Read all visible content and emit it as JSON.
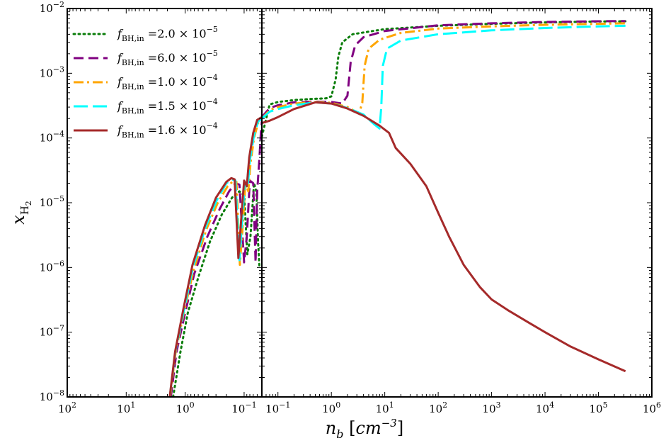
{
  "chart_data": {
    "type": "line",
    "xlabel": "n_b [cm^-3]",
    "ylabel": "x_H2",
    "y_scale": "log",
    "ylim": [
      1e-08,
      0.01
    ],
    "y_ticks": [
      {
        "value": 1e-08,
        "label": "10^-8"
      },
      {
        "value": 1e-07,
        "label": "10^-7"
      },
      {
        "value": 1e-06,
        "label": "10^-6"
      },
      {
        "value": 1e-05,
        "label": "10^-5"
      },
      {
        "value": 0.0001,
        "label": "10^-4"
      },
      {
        "value": 0.001,
        "label": "10^-3"
      },
      {
        "value": 0.01,
        "label": "10^-2"
      }
    ],
    "left_panel": {
      "note": "contracting phase, x axis reversed (density decreasing to the right)",
      "x_scale": "log",
      "xlim": [
        100,
        0.05
      ],
      "x_ticks": [
        {
          "value": 100,
          "label": "10^2"
        },
        {
          "value": 10,
          "label": "10^1"
        },
        {
          "value": 1,
          "label": "10^0"
        },
        {
          "value": 0.1,
          "label": "10^-1"
        }
      ]
    },
    "right_panel": {
      "x_scale": "log",
      "xlim": [
        0.05,
        1000000
      ],
      "x_ticks": [
        {
          "value": 0.1,
          "label": "10^-1"
        },
        {
          "value": 1,
          "label": "10^0"
        },
        {
          "value": 10,
          "label": "10^1"
        },
        {
          "value": 100,
          "label": "10^2"
        },
        {
          "value": 1000,
          "label": "10^3"
        },
        {
          "value": 10000,
          "label": "10^4"
        },
        {
          "value": 100000,
          "label": "10^5"
        },
        {
          "value": 1000000,
          "label": "10^6"
        }
      ]
    },
    "legend_position": "upper-left",
    "series": [
      {
        "name": "f_BH,in = 2.0 × 10^-5",
        "legend_mantissa": "2.0",
        "legend_exponent": "-5",
        "color": "#0a7d0a",
        "dash": "2 5",
        "linecap": "round",
        "left": [
          [
            1.6,
            1e-08
          ],
          [
            1.2,
            5e-08
          ],
          [
            0.9,
            2e-07
          ],
          [
            0.6,
            7e-07
          ],
          [
            0.38,
            2.5e-06
          ],
          [
            0.24,
            6.5e-06
          ],
          [
            0.16,
            1.2e-05
          ],
          [
            0.12,
            1.5e-05
          ],
          [
            0.1,
            1.3e-05
          ],
          [
            0.088,
            1.6e-06
          ],
          [
            0.078,
            3e-06
          ],
          [
            0.068,
            2e-05
          ],
          [
            0.062,
            1.5e-05
          ],
          [
            0.058,
            2.5e-06
          ],
          [
            0.055,
            1e-06
          ]
        ],
        "right": [
          [
            0.05,
            0.000105
          ],
          [
            0.07,
            0.00033
          ],
          [
            0.1,
            0.00036
          ],
          [
            0.2,
            0.000385
          ],
          [
            0.4,
            0.0004
          ],
          [
            0.8,
            0.00041
          ],
          [
            1.0,
            0.00044
          ],
          [
            1.2,
            0.0008
          ],
          [
            1.35,
            0.0018
          ],
          [
            1.6,
            0.003
          ],
          [
            2.5,
            0.004
          ],
          [
            10,
            0.0048
          ],
          [
            100,
            0.0054
          ],
          [
            1000,
            0.0058
          ],
          [
            10000,
            0.0061
          ],
          [
            100000,
            0.0063
          ],
          [
            320000,
            0.00635
          ]
        ]
      },
      {
        "name": "f_BH,in = 6.0 × 10^-5",
        "legend_mantissa": "6.0",
        "legend_exponent": "-5",
        "color": "#800080",
        "dash": "14 7",
        "linecap": "butt",
        "left": [
          [
            1.75,
            1e-08
          ],
          [
            1.4,
            5e-08
          ],
          [
            1.0,
            2e-07
          ],
          [
            0.7,
            8e-07
          ],
          [
            0.42,
            3e-06
          ],
          [
            0.26,
            8e-06
          ],
          [
            0.18,
            1.5e-05
          ],
          [
            0.14,
            2e-05
          ],
          [
            0.12,
            1.9e-05
          ],
          [
            0.1,
            1.2e-06
          ],
          [
            0.09,
            3e-06
          ],
          [
            0.08,
            2.2e-05
          ],
          [
            0.07,
            2e-05
          ],
          [
            0.064,
            1.2e-06
          ],
          [
            0.06,
            1.5e-05
          ],
          [
            0.055,
            5e-05
          ],
          [
            0.052,
            0.00012
          ],
          [
            0.05,
            0.00018
          ]
        ],
        "right": [
          [
            0.05,
            0.00021
          ],
          [
            0.07,
            0.00029
          ],
          [
            0.1,
            0.00032
          ],
          [
            0.2,
            0.000355
          ],
          [
            0.5,
            0.000365
          ],
          [
            1.0,
            0.00036
          ],
          [
            1.6,
            0.00034
          ],
          [
            2.0,
            0.00045
          ],
          [
            2.3,
            0.0015
          ],
          [
            2.8,
            0.0027
          ],
          [
            4,
            0.0036
          ],
          [
            10,
            0.0045
          ],
          [
            100,
            0.0055
          ],
          [
            1000,
            0.0059
          ],
          [
            10000,
            0.0062
          ],
          [
            100000,
            0.00635
          ],
          [
            320000,
            0.0064
          ]
        ]
      },
      {
        "name": "f_BH,in = 1.0 × 10^-4",
        "legend_mantissa": "1.0",
        "legend_exponent": "-4",
        "color": "#ffa500",
        "dash": "14 5 3 5",
        "linecap": "butt",
        "left": [
          [
            1.8,
            1e-08
          ],
          [
            1.45,
            5e-08
          ],
          [
            1.05,
            2e-07
          ],
          [
            0.72,
            9e-07
          ],
          [
            0.44,
            3.8e-06
          ],
          [
            0.28,
            1e-05
          ],
          [
            0.19,
            1.8e-05
          ],
          [
            0.15,
            2.2e-05
          ],
          [
            0.135,
            2.1e-05
          ],
          [
            0.118,
            1.1e-06
          ],
          [
            0.105,
            5e-06
          ],
          [
            0.095,
            2e-05
          ],
          [
            0.085,
            1.5e-05
          ],
          [
            0.078,
            4e-05
          ],
          [
            0.068,
            0.0001
          ],
          [
            0.058,
            0.00017
          ],
          [
            0.05,
            0.0002
          ]
        ],
        "right": [
          [
            0.05,
            0.0002
          ],
          [
            0.07,
            0.00027
          ],
          [
            0.1,
            0.0003
          ],
          [
            0.2,
            0.00034
          ],
          [
            0.5,
            0.00036
          ],
          [
            1.0,
            0.00035
          ],
          [
            2.0,
            0.0003
          ],
          [
            3.3,
            0.00024
          ],
          [
            3.8,
            0.00035
          ],
          [
            4.2,
            0.0013
          ],
          [
            5,
            0.0024
          ],
          [
            8,
            0.0033
          ],
          [
            20,
            0.0042
          ],
          [
            100,
            0.0049
          ],
          [
            1000,
            0.0053
          ],
          [
            10000,
            0.0056
          ],
          [
            100000,
            0.0058
          ],
          [
            320000,
            0.0059
          ]
        ]
      },
      {
        "name": "f_BH,in = 1.5 × 10^-4",
        "legend_mantissa": "1.5",
        "legend_exponent": "-4",
        "color": "#00ffff",
        "dash": "20 7",
        "linecap": "butt",
        "left": [
          [
            1.82,
            1e-08
          ],
          [
            1.47,
            5e-08
          ],
          [
            1.07,
            2e-07
          ],
          [
            0.74,
            1e-06
          ],
          [
            0.45,
            4.2e-06
          ],
          [
            0.29,
            1.1e-05
          ],
          [
            0.2,
            2e-05
          ],
          [
            0.16,
            2.3e-05
          ],
          [
            0.14,
            2.2e-05
          ],
          [
            0.12,
            1.3e-06
          ],
          [
            0.107,
            6e-06
          ],
          [
            0.097,
            2.1e-05
          ],
          [
            0.087,
            1.7e-05
          ],
          [
            0.08,
            4.5e-05
          ],
          [
            0.068,
            0.00011
          ],
          [
            0.058,
            0.00018
          ],
          [
            0.05,
            0.0002
          ]
        ],
        "right": [
          [
            0.05,
            0.0002
          ],
          [
            0.07,
            0.000255
          ],
          [
            0.1,
            0.00028
          ],
          [
            0.2,
            0.00032
          ],
          [
            0.5,
            0.000355
          ],
          [
            1.0,
            0.00034
          ],
          [
            2.0,
            0.00029
          ],
          [
            4.0,
            0.00023
          ],
          [
            6.5,
            0.00016
          ],
          [
            8.0,
            0.00014
          ],
          [
            8.6,
            0.0003
          ],
          [
            9.2,
            0.0013
          ],
          [
            11,
            0.0024
          ],
          [
            20,
            0.0032
          ],
          [
            100,
            0.004
          ],
          [
            1000,
            0.0046
          ],
          [
            10000,
            0.005
          ],
          [
            100000,
            0.0053
          ],
          [
            320000,
            0.0054
          ]
        ]
      },
      {
        "name": "f_BH,in = 1.6 × 10^-4",
        "legend_mantissa": "1.6",
        "legend_exponent": "-4",
        "color": "#a52a2a",
        "dash": "",
        "linecap": "butt",
        "left": [
          [
            1.83,
            1e-08
          ],
          [
            1.48,
            5e-08
          ],
          [
            1.08,
            2.2e-07
          ],
          [
            0.75,
            1.1e-06
          ],
          [
            0.46,
            4.5e-06
          ],
          [
            0.3,
            1.2e-05
          ],
          [
            0.2,
            2.1e-05
          ],
          [
            0.165,
            2.4e-05
          ],
          [
            0.145,
            2.3e-05
          ],
          [
            0.125,
            1.4e-06
          ],
          [
            0.11,
            7e-06
          ],
          [
            0.1,
            2.2e-05
          ],
          [
            0.09,
            1.8e-05
          ],
          [
            0.082,
            5e-05
          ],
          [
            0.07,
            0.00012
          ],
          [
            0.06,
            0.00019
          ],
          [
            0.05,
            0.00021
          ]
        ],
        "right": [
          [
            0.05,
            0.00017
          ],
          [
            0.07,
            0.000185
          ],
          [
            0.1,
            0.00021
          ],
          [
            0.2,
            0.00028
          ],
          [
            0.5,
            0.000355
          ],
          [
            1.0,
            0.00034
          ],
          [
            2.0,
            0.000285
          ],
          [
            4.0,
            0.00022
          ],
          [
            8.0,
            0.000155
          ],
          [
            12,
            0.00012
          ],
          [
            16,
            7e-05
          ],
          [
            30,
            4e-05
          ],
          [
            60,
            1.8e-05
          ],
          [
            100,
            7e-06
          ],
          [
            160,
            3e-06
          ],
          [
            300,
            1.1e-06
          ],
          [
            600,
            5e-07
          ],
          [
            1000,
            3.2e-07
          ],
          [
            2000,
            2.2e-07
          ],
          [
            5000,
            1.4e-07
          ],
          [
            10000,
            1e-07
          ],
          [
            30000,
            6e-08
          ],
          [
            100000,
            3.8e-08
          ],
          [
            320000,
            2.5e-08
          ]
        ]
      }
    ]
  }
}
